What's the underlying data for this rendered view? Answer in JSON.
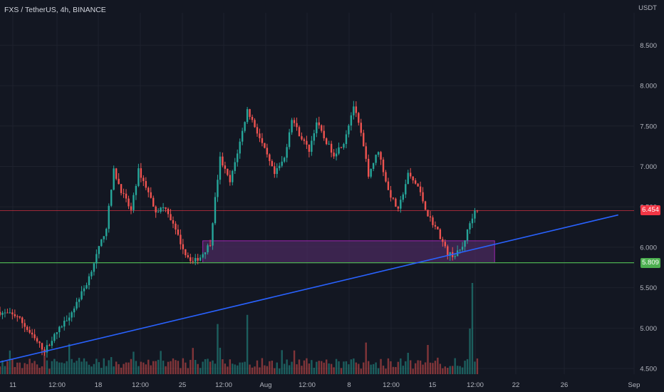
{
  "header": {
    "title": "FXS / TetherUS, 4h, BINANCE",
    "currency": "USDT"
  },
  "price_tags": {
    "last": {
      "value": "6.454",
      "price": 6.454,
      "color": "#f23645"
    },
    "support": {
      "value": "5.809",
      "price": 5.809,
      "color": "#4caf50"
    }
  },
  "colors": {
    "background": "#131722",
    "grid": "#1e222d",
    "up": "#26a69a",
    "down": "#ef5350",
    "trendline": "#2962ff",
    "zone_fill": "#4a2a5e",
    "zone_border": "#9c27b0",
    "support_line": "#4caf50",
    "last_price_line": "#f23645"
  },
  "chart_data": {
    "type": "candlestick",
    "symbol": "FXS / TetherUS",
    "timeframe": "4h",
    "exchange": "BINANCE",
    "y_axis": {
      "ticks": [
        4.5,
        5.0,
        5.5,
        6.0,
        6.5,
        7.0,
        7.5,
        8.0,
        8.5
      ],
      "tick_labels": [
        "4.500",
        "5.000",
        "5.500",
        "6.000",
        "6.500",
        "7.000",
        "7.500",
        "8.000",
        "8.500"
      ],
      "range": [
        4.4,
        8.9
      ]
    },
    "x_axis": {
      "tick_labels": [
        "11",
        "12:00",
        "18",
        "12:00",
        "25",
        "12:00",
        "Aug",
        "12:00",
        "8",
        "12:00",
        "15",
        "12:00",
        "22",
        "26",
        "Sep"
      ]
    },
    "price_path": [
      [
        0,
        5.2
      ],
      [
        4,
        5.15
      ],
      [
        7,
        4.9
      ],
      [
        9.5,
        4.72
      ],
      [
        12,
        4.95
      ],
      [
        15,
        5.2
      ],
      [
        18,
        5.55
      ],
      [
        20,
        5.9
      ],
      [
        22,
        6.25
      ],
      [
        23.5,
        6.95
      ],
      [
        25,
        6.7
      ],
      [
        27,
        6.45
      ],
      [
        28.5,
        6.95
      ],
      [
        30,
        6.75
      ],
      [
        32,
        6.45
      ],
      [
        34,
        6.5
      ],
      [
        36,
        6.2
      ],
      [
        38,
        5.92
      ],
      [
        39.5,
        5.82
      ],
      [
        41,
        5.88
      ],
      [
        43,
        6.05
      ],
      [
        44,
        6.6
      ],
      [
        45,
        7.1
      ],
      [
        47,
        6.8
      ],
      [
        49,
        7.3
      ],
      [
        50.5,
        7.7
      ],
      [
        52,
        7.5
      ],
      [
        54,
        7.2
      ],
      [
        56,
        6.9
      ],
      [
        58,
        7.1
      ],
      [
        59.5,
        7.6
      ],
      [
        61,
        7.4
      ],
      [
        63,
        7.2
      ],
      [
        64.5,
        7.55
      ],
      [
        66,
        7.35
      ],
      [
        68,
        7.15
      ],
      [
        70,
        7.3
      ],
      [
        72,
        7.75
      ],
      [
        73.5,
        7.4
      ],
      [
        75,
        6.9
      ],
      [
        77,
        7.2
      ],
      [
        79,
        6.7
      ],
      [
        81,
        6.45
      ],
      [
        83,
        6.9
      ],
      [
        85,
        6.75
      ],
      [
        87,
        6.4
      ],
      [
        89,
        6.2
      ],
      [
        91,
        5.92
      ],
      [
        92.5,
        5.9
      ],
      [
        94,
        6.0
      ],
      [
        95.5,
        6.3
      ],
      [
        96.5,
        6.454
      ]
    ],
    "volume_spikes": [
      {
        "t": 95.5,
        "v": 1.0
      },
      {
        "t": 94.8,
        "v": 0.5
      },
      {
        "t": 50.2,
        "v": 0.65
      },
      {
        "t": 43.8,
        "v": 0.55
      }
    ],
    "horizontal_lines": [
      {
        "name": "last_price",
        "price": 6.454
      },
      {
        "name": "support",
        "price": 5.809
      }
    ],
    "zone": {
      "t_start": 41,
      "t_end": 100,
      "price_low": 5.809,
      "price_high": 6.08
    },
    "trendline": {
      "t0": 0,
      "p0": 4.58,
      "t1": 125,
      "p1": 6.4
    }
  }
}
